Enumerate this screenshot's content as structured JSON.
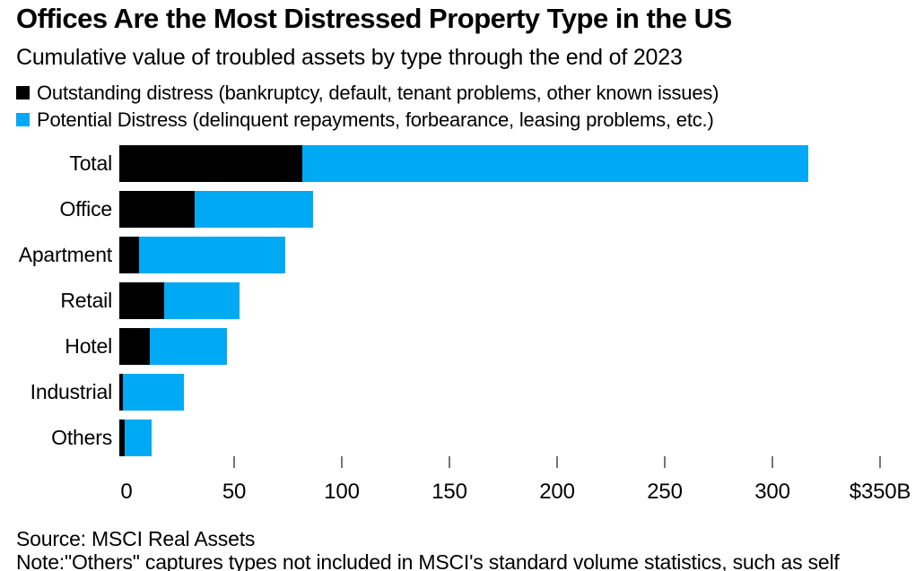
{
  "title": "Offices Are the Most Distressed Property Type in the US",
  "subtitle": "Cumulative value of troubled assets by type through the end of 2023",
  "legend": [
    {
      "name": "outstanding",
      "label": "Outstanding distress (bankruptcy, default, tenant problems, other known issues)",
      "color": "#000000"
    },
    {
      "name": "potential",
      "label": "Potential Distress (delinquent repayments, forbearance, leasing problems, etc.)",
      "color": "#00a9f4"
    }
  ],
  "source": "Source: MSCI Real Assets",
  "note": "Note:\"Others\" captures types not included in MSCI's standard volume statistics, such as self",
  "colors": {
    "bar_outstanding": "#000000",
    "bar_potential": "#00a9f4",
    "tick": "#757575",
    "text": "#000000",
    "background": "#ffffff"
  },
  "chart_data": {
    "type": "bar",
    "orientation": "horizontal",
    "stacked": true,
    "unit": "billions USD",
    "categories": [
      "Total",
      "Office",
      "Apartment",
      "Retail",
      "Hotel",
      "Industrial",
      "Others"
    ],
    "series": [
      {
        "name": "Outstanding distress",
        "color": "#000000",
        "values": [
          85,
          35,
          9,
          21,
          14,
          1.5,
          2.5
        ]
      },
      {
        "name": "Potential Distress",
        "color": "#00a9f4",
        "values": [
          235,
          55,
          68,
          35,
          36,
          28.5,
          12.5
        ]
      }
    ],
    "totals": [
      320,
      90,
      77,
      56,
      50,
      30,
      15
    ],
    "xlim": [
      0,
      350
    ],
    "xticks": [
      0,
      50,
      100,
      150,
      200,
      250,
      300,
      350
    ],
    "xtick_labels": [
      "0",
      "50",
      "100",
      "150",
      "200",
      "250",
      "300",
      "$350B"
    ],
    "grid": false,
    "legend_position": "top-left"
  }
}
